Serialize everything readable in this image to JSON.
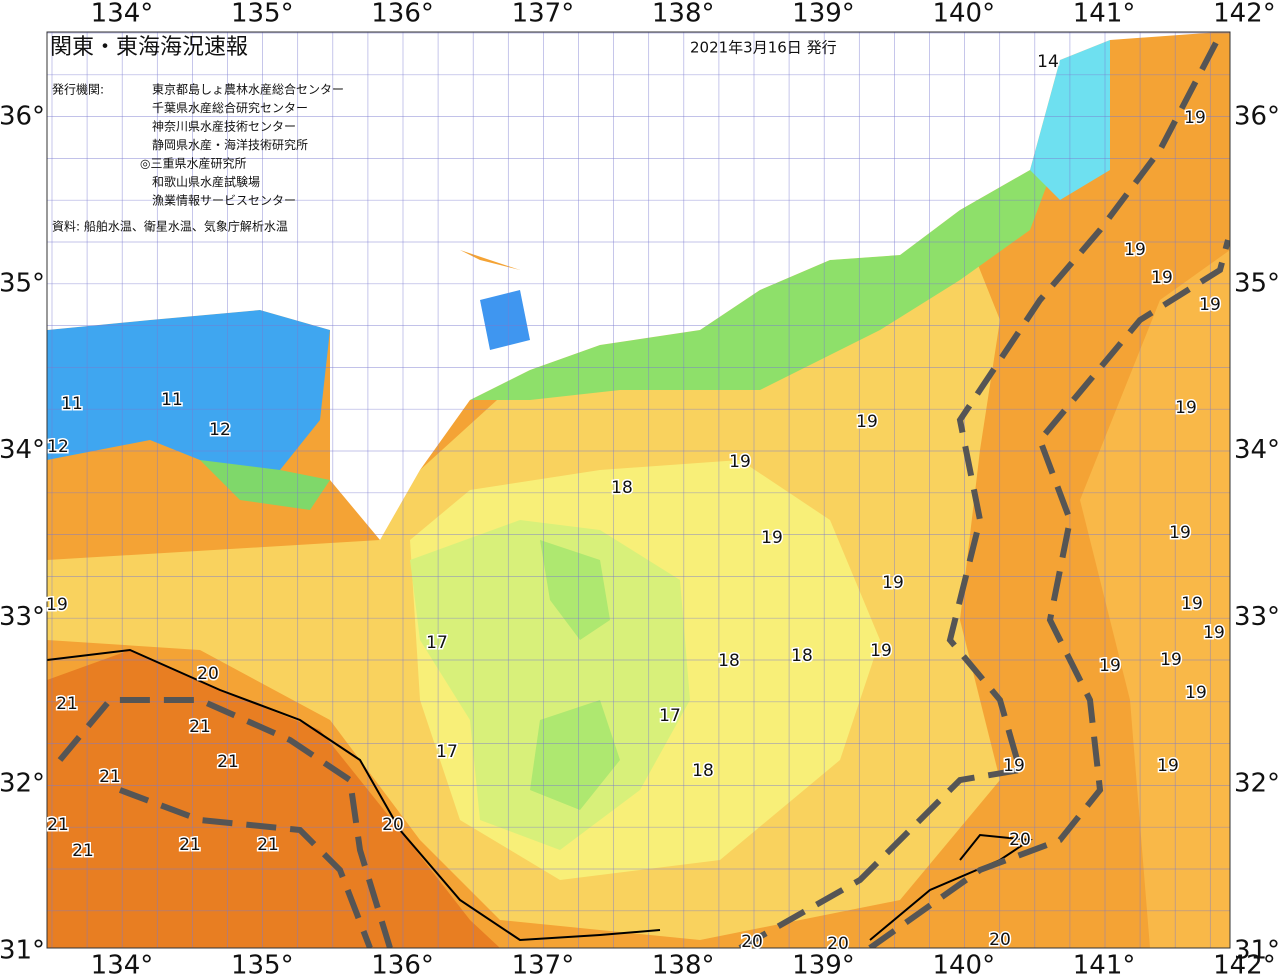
{
  "header": {
    "title": "関東・東海海況速報",
    "date": "2021年3月16日 発行",
    "issuer_label": "発行機関:",
    "issuers": [
      "東京都島しょ農林水産総合センター",
      "千葉県水産総合研究センター",
      "神奈川県水産技術センター",
      "静岡県水産・海洋技術研究所",
      "◎三重県水産研究所",
      "和歌山県水産試験場",
      "漁業情報サービスセンター"
    ],
    "source": "資料: 船舶水温、衛星水温、気象庁解析水温"
  },
  "map": {
    "longitudes": [
      "134°",
      "135°",
      "136°",
      "137°",
      "138°",
      "139°",
      "140°",
      "141°",
      "142°"
    ],
    "latitudes": [
      "36°",
      "35°",
      "34°",
      "33°",
      "32°",
      "31°"
    ],
    "contour_labels": [
      14,
      19,
      19,
      19,
      19,
      11,
      11,
      12,
      12,
      19,
      19,
      18,
      19,
      19,
      19,
      19,
      19,
      19,
      19,
      17,
      18,
      18,
      19,
      19,
      19,
      19,
      20,
      21,
      21,
      17,
      21,
      17,
      18,
      19,
      19,
      21,
      20,
      21,
      21,
      21,
      21,
      20,
      20,
      20,
      20
    ]
  }
}
